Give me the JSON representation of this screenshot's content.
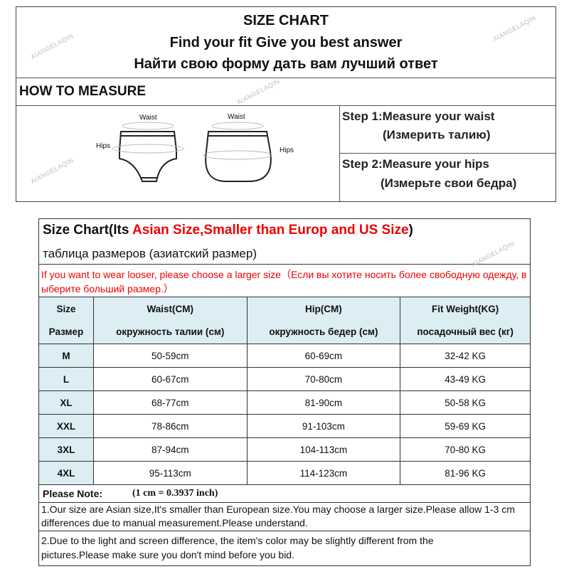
{
  "header": {
    "title": "SIZE CHART",
    "subtitle_en": "Find your fit Give you best answer",
    "subtitle_ru": "Найти свою форму дать вам лучший ответ"
  },
  "how_to_measure": {
    "heading": "HOW TO MEASURE",
    "labels": {
      "waist1": "Waist",
      "waist2": "Waist",
      "hips1": "Hips",
      "hips2": "Hips"
    },
    "step1": "Step 1:Measure your waist",
    "step1_ru": "(Измерить талию)",
    "step2": "Step 2:Measure your hips",
    "step2_ru": "(Измерьте свои бедра)"
  },
  "size_chart": {
    "title_prefix": "Size Chart(Its ",
    "title_red": "Asian Size,Smaller than Europ and US Size",
    "title_suffix": ")",
    "subtitle_ru": "таблица размеров (азиатский размер)",
    "notice": "If you want to wear looser, please choose a larger size（Если вы хотите носить более свободную одежду, выберите больший размер.）",
    "columns": [
      {
        "en": "Size",
        "ru": "Размер"
      },
      {
        "en": "Waist(CM)",
        "ru": "окружность талии (см)"
      },
      {
        "en": "Hip(CM)",
        "ru": "окружность бедер (см)"
      },
      {
        "en": "Fit Weight(KG)",
        "ru": "посадочный вес (кг)"
      }
    ],
    "rows": [
      [
        "M",
        "50-59cm",
        "60-69cm",
        "32-42 KG"
      ],
      [
        "L",
        "60-67cm",
        "70-80cm",
        "43-49 KG"
      ],
      [
        "XL",
        "68-77cm",
        "81-90cm",
        "50-58 KG"
      ],
      [
        "XXL",
        "78-86cm",
        "91-103cm",
        "59-69 KG"
      ],
      [
        "3XL",
        "87-94cm",
        "104-113cm",
        "70-80 KG"
      ],
      [
        "4XL",
        "95-113cm",
        "114-123cm",
        "81-96 KG"
      ]
    ],
    "note_label": "Please Note:",
    "conversion": "(1 cm = 0.3937 inch)",
    "note1": "1.Our size are Asian size,It's smaller than European size.You may choose a larger size.Please allow 1-3 cm differences due to manual measurement.Please understand.",
    "note2": "2.Due to the light and screen difference, the item's color may be slightly different from the pictures.Please make sure you don't mind before you bid."
  },
  "watermark": "AIANGELAQIN",
  "colors": {
    "accent_red": "#ee0000",
    "header_bg": "#dcedf3"
  }
}
